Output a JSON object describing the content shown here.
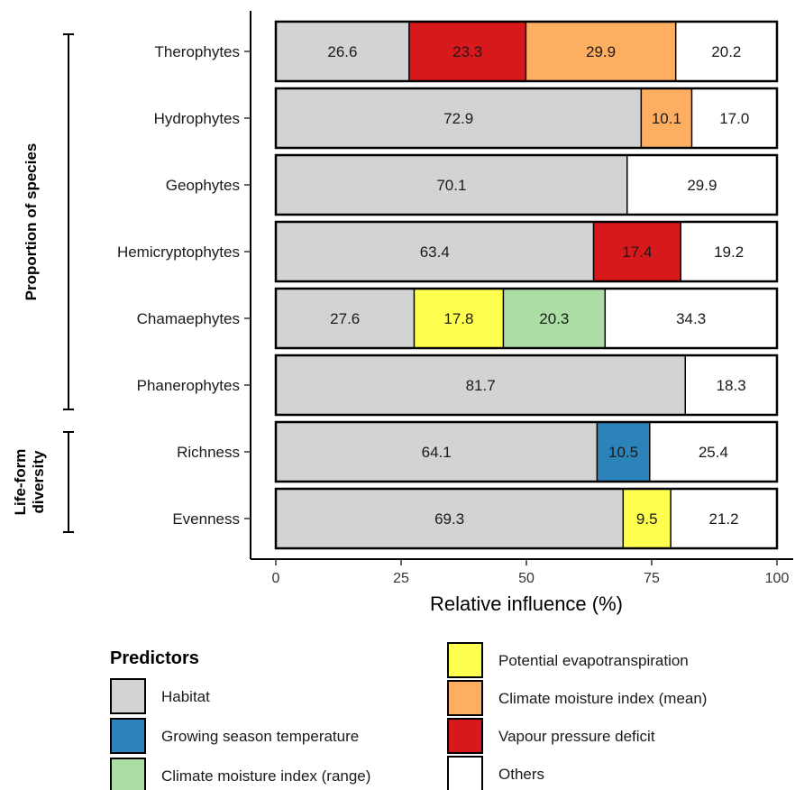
{
  "chart_data": {
    "type": "bar",
    "orientation": "horizontal",
    "stacked": true,
    "xlabel": "Relative influence (%)",
    "xlim": [
      0,
      100
    ],
    "xticks": [
      0,
      25,
      50,
      75,
      100
    ],
    "categories": [
      "Therophytes",
      "Hydrophytes",
      "Geophytes",
      "Hemicryptophytes",
      "Chamaephytes",
      "Phanerophytes",
      "Richness",
      "Evenness"
    ],
    "groups": [
      {
        "label": "Proportion of species",
        "categories": [
          "Therophytes",
          "Hydrophytes",
          "Geophytes",
          "Hemicryptophytes",
          "Chamaephytes",
          "Phanerophytes"
        ]
      },
      {
        "label": "Life-form diversity",
        "label_lines": [
          "Life-form",
          "diversity"
        ],
        "categories": [
          "Richness",
          "Evenness"
        ]
      }
    ],
    "bars": [
      {
        "category": "Therophytes",
        "segments": [
          {
            "predictor": "Habitat",
            "value": 26.6
          },
          {
            "predictor": "Vapour pressure deficit",
            "value": 23.3
          },
          {
            "predictor": "Climate moisture index (mean)",
            "value": 29.9
          },
          {
            "predictor": "Others",
            "value": 20.2
          }
        ]
      },
      {
        "category": "Hydrophytes",
        "segments": [
          {
            "predictor": "Habitat",
            "value": 72.9
          },
          {
            "predictor": "Climate moisture index (mean)",
            "value": 10.1
          },
          {
            "predictor": "Others",
            "value": 17.0
          }
        ]
      },
      {
        "category": "Geophytes",
        "segments": [
          {
            "predictor": "Habitat",
            "value": 70.1
          },
          {
            "predictor": "Others",
            "value": 29.9
          }
        ]
      },
      {
        "category": "Hemicryptophytes",
        "segments": [
          {
            "predictor": "Habitat",
            "value": 63.4
          },
          {
            "predictor": "Vapour pressure deficit",
            "value": 17.4
          },
          {
            "predictor": "Others",
            "value": 19.2
          }
        ]
      },
      {
        "category": "Chamaephytes",
        "segments": [
          {
            "predictor": "Habitat",
            "value": 27.6
          },
          {
            "predictor": "Potential evapotranspiration",
            "value": 17.8
          },
          {
            "predictor": "Climate moisture index (range)",
            "value": 20.3
          },
          {
            "predictor": "Others",
            "value": 34.3
          }
        ]
      },
      {
        "category": "Phanerophytes",
        "segments": [
          {
            "predictor": "Habitat",
            "value": 81.7
          },
          {
            "predictor": "Others",
            "value": 18.3
          }
        ]
      },
      {
        "category": "Richness",
        "segments": [
          {
            "predictor": "Habitat",
            "value": 64.1
          },
          {
            "predictor": "Growing season temperature",
            "value": 10.5
          },
          {
            "predictor": "Others",
            "value": 25.4
          }
        ]
      },
      {
        "category": "Evenness",
        "segments": [
          {
            "predictor": "Habitat",
            "value": 69.3
          },
          {
            "predictor": "Potential evapotranspiration",
            "value": 9.5
          },
          {
            "predictor": "Others",
            "value": 21.2
          }
        ]
      }
    ],
    "legend": {
      "title": "Predictors",
      "placement": "bottom",
      "items": [
        {
          "name": "Habitat",
          "color": "#d3d3d3"
        },
        {
          "name": "Growing season temperature",
          "color": "#2b83ba"
        },
        {
          "name": "Climate moisture index (range)",
          "color": "#abdda4"
        },
        {
          "name": "Potential evapotranspiration",
          "color": "#ffff4f"
        },
        {
          "name": "Climate moisture index (mean)",
          "color": "#fdae61"
        },
        {
          "name": "Vapour pressure deficit",
          "color": "#d7191c"
        },
        {
          "name": "Others",
          "color": "#ffffff"
        }
      ]
    },
    "grid": false
  }
}
